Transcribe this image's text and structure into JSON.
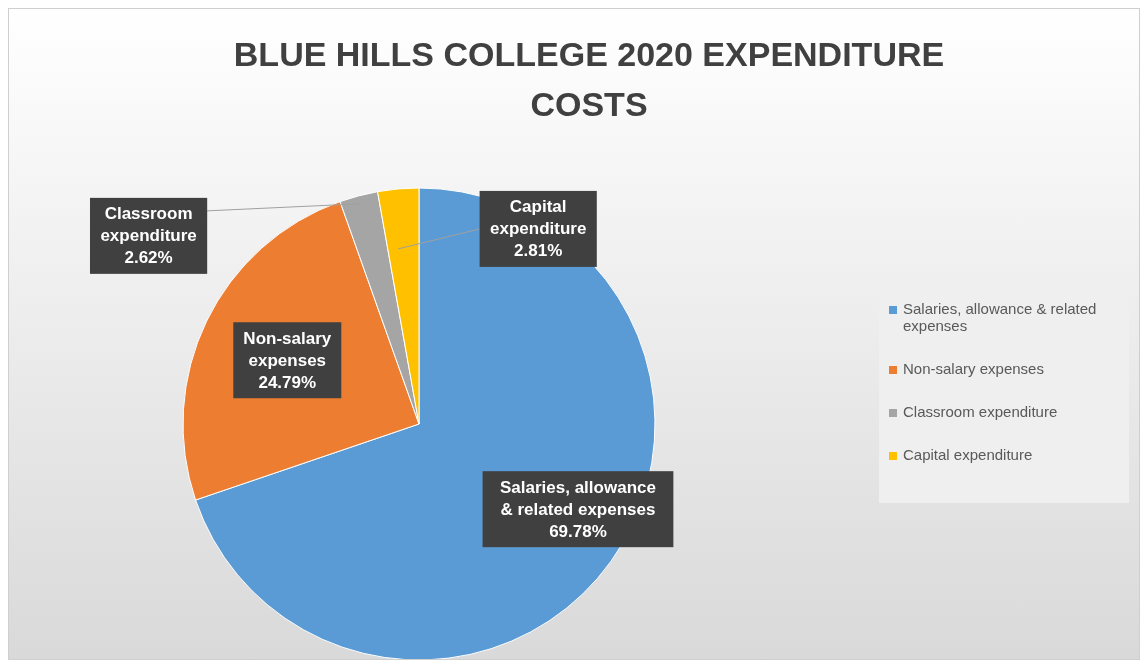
{
  "chart_data": {
    "type": "pie",
    "title": "BLUE HILLS COLLEGE 2020 EXPENDITURE COSTS",
    "categories": [
      "Salaries, allowance & related expenses",
      "Non-salary expenses",
      "Classroom expenditure",
      "Capital expenditure"
    ],
    "values": [
      69.78,
      24.79,
      2.62,
      2.81
    ],
    "colors": [
      "#5b9bd5",
      "#ed7d31",
      "#a5a5a5",
      "#ffc000"
    ],
    "value_labels": [
      "69.78%",
      "24.79%",
      "2.62%",
      "2.81%"
    ],
    "legend": "right"
  }
}
